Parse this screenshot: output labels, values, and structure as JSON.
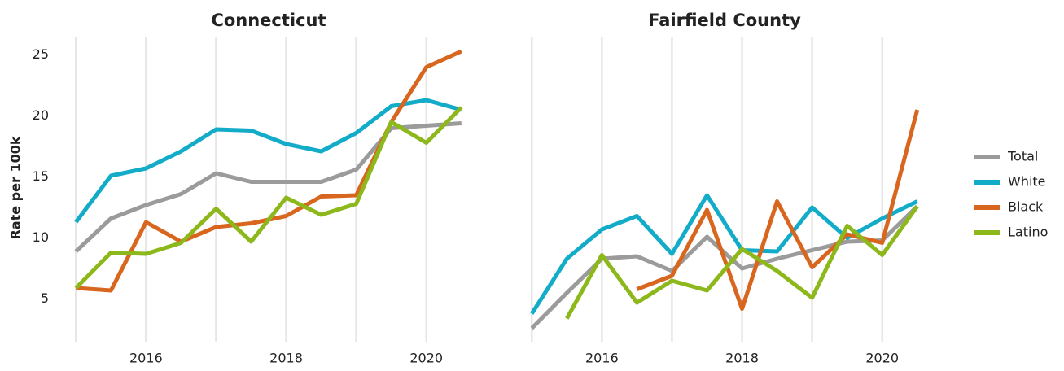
{
  "chart_data": [
    {
      "type": "line",
      "title": "Connecticut",
      "ylabel": "Rate per 100k",
      "x": [
        2015,
        2015.5,
        2016,
        2016.5,
        2017,
        2017.5,
        2018,
        2018.5,
        2019,
        2019.5,
        2020,
        2020.5
      ],
      "xlim": [
        2014.73,
        2020.77
      ],
      "xticks": [
        2016,
        2018,
        2020
      ],
      "xminor": [
        2015,
        2017,
        2019
      ],
      "ylim": [
        1.5,
        26.5
      ],
      "yticks": [
        5,
        10,
        15,
        20,
        25
      ],
      "grid": true,
      "legend": "right",
      "series": [
        {
          "name": "Total",
          "color": "#9b9b9b",
          "values": [
            8.9,
            11.6,
            12.7,
            13.6,
            15.3,
            14.6,
            14.6,
            14.6,
            15.6,
            19.0,
            19.2,
            19.4
          ]
        },
        {
          "name": "White",
          "color": "#12acc9",
          "values": [
            11.3,
            15.1,
            15.7,
            17.1,
            18.9,
            18.8,
            17.7,
            17.1,
            18.6,
            20.8,
            21.3,
            20.5
          ]
        },
        {
          "name": "Black",
          "color": "#d9661f",
          "values": [
            5.9,
            5.7,
            11.3,
            9.7,
            10.9,
            11.2,
            11.8,
            13.4,
            13.5,
            19.5,
            24.0,
            25.3
          ]
        },
        {
          "name": "Latino",
          "color": "#8db81b",
          "values": [
            5.9,
            8.8,
            8.7,
            9.6,
            12.4,
            9.7,
            13.3,
            11.9,
            12.8,
            19.5,
            17.8,
            20.7
          ]
        }
      ]
    },
    {
      "type": "line",
      "title": "Fairfield County",
      "x": [
        2015,
        2015.5,
        2016,
        2016.5,
        2017,
        2017.5,
        2018,
        2018.5,
        2019,
        2019.5,
        2020,
        2020.5
      ],
      "xlim": [
        2014.73,
        2020.77
      ],
      "xticks": [
        2016,
        2018,
        2020
      ],
      "xminor": [
        2015,
        2017,
        2019
      ],
      "ylim": [
        1.5,
        26.5
      ],
      "yticks": [
        5,
        10,
        15,
        20,
        25
      ],
      "grid": true,
      "series": [
        {
          "name": "Total",
          "color": "#9b9b9b",
          "values": [
            2.6,
            5.5,
            8.3,
            8.5,
            7.3,
            10.1,
            7.5,
            8.3,
            9.0,
            9.7,
            9.8,
            12.6
          ]
        },
        {
          "name": "White",
          "color": "#12acc9",
          "values": [
            3.8,
            8.3,
            10.7,
            11.8,
            8.7,
            13.5,
            9.0,
            8.9,
            12.5,
            10.0,
            11.6,
            13.0
          ]
        },
        {
          "name": "Black",
          "color": "#d9661f",
          "values": [
            null,
            null,
            null,
            5.8,
            6.9,
            12.3,
            4.2,
            13.0,
            7.6,
            10.3,
            9.6,
            20.5
          ]
        },
        {
          "name": "Latino",
          "color": "#8db81b",
          "values": [
            null,
            3.4,
            8.6,
            4.7,
            6.5,
            5.7,
            9.1,
            7.3,
            5.1,
            11.0,
            8.6,
            12.6
          ]
        }
      ]
    }
  ]
}
